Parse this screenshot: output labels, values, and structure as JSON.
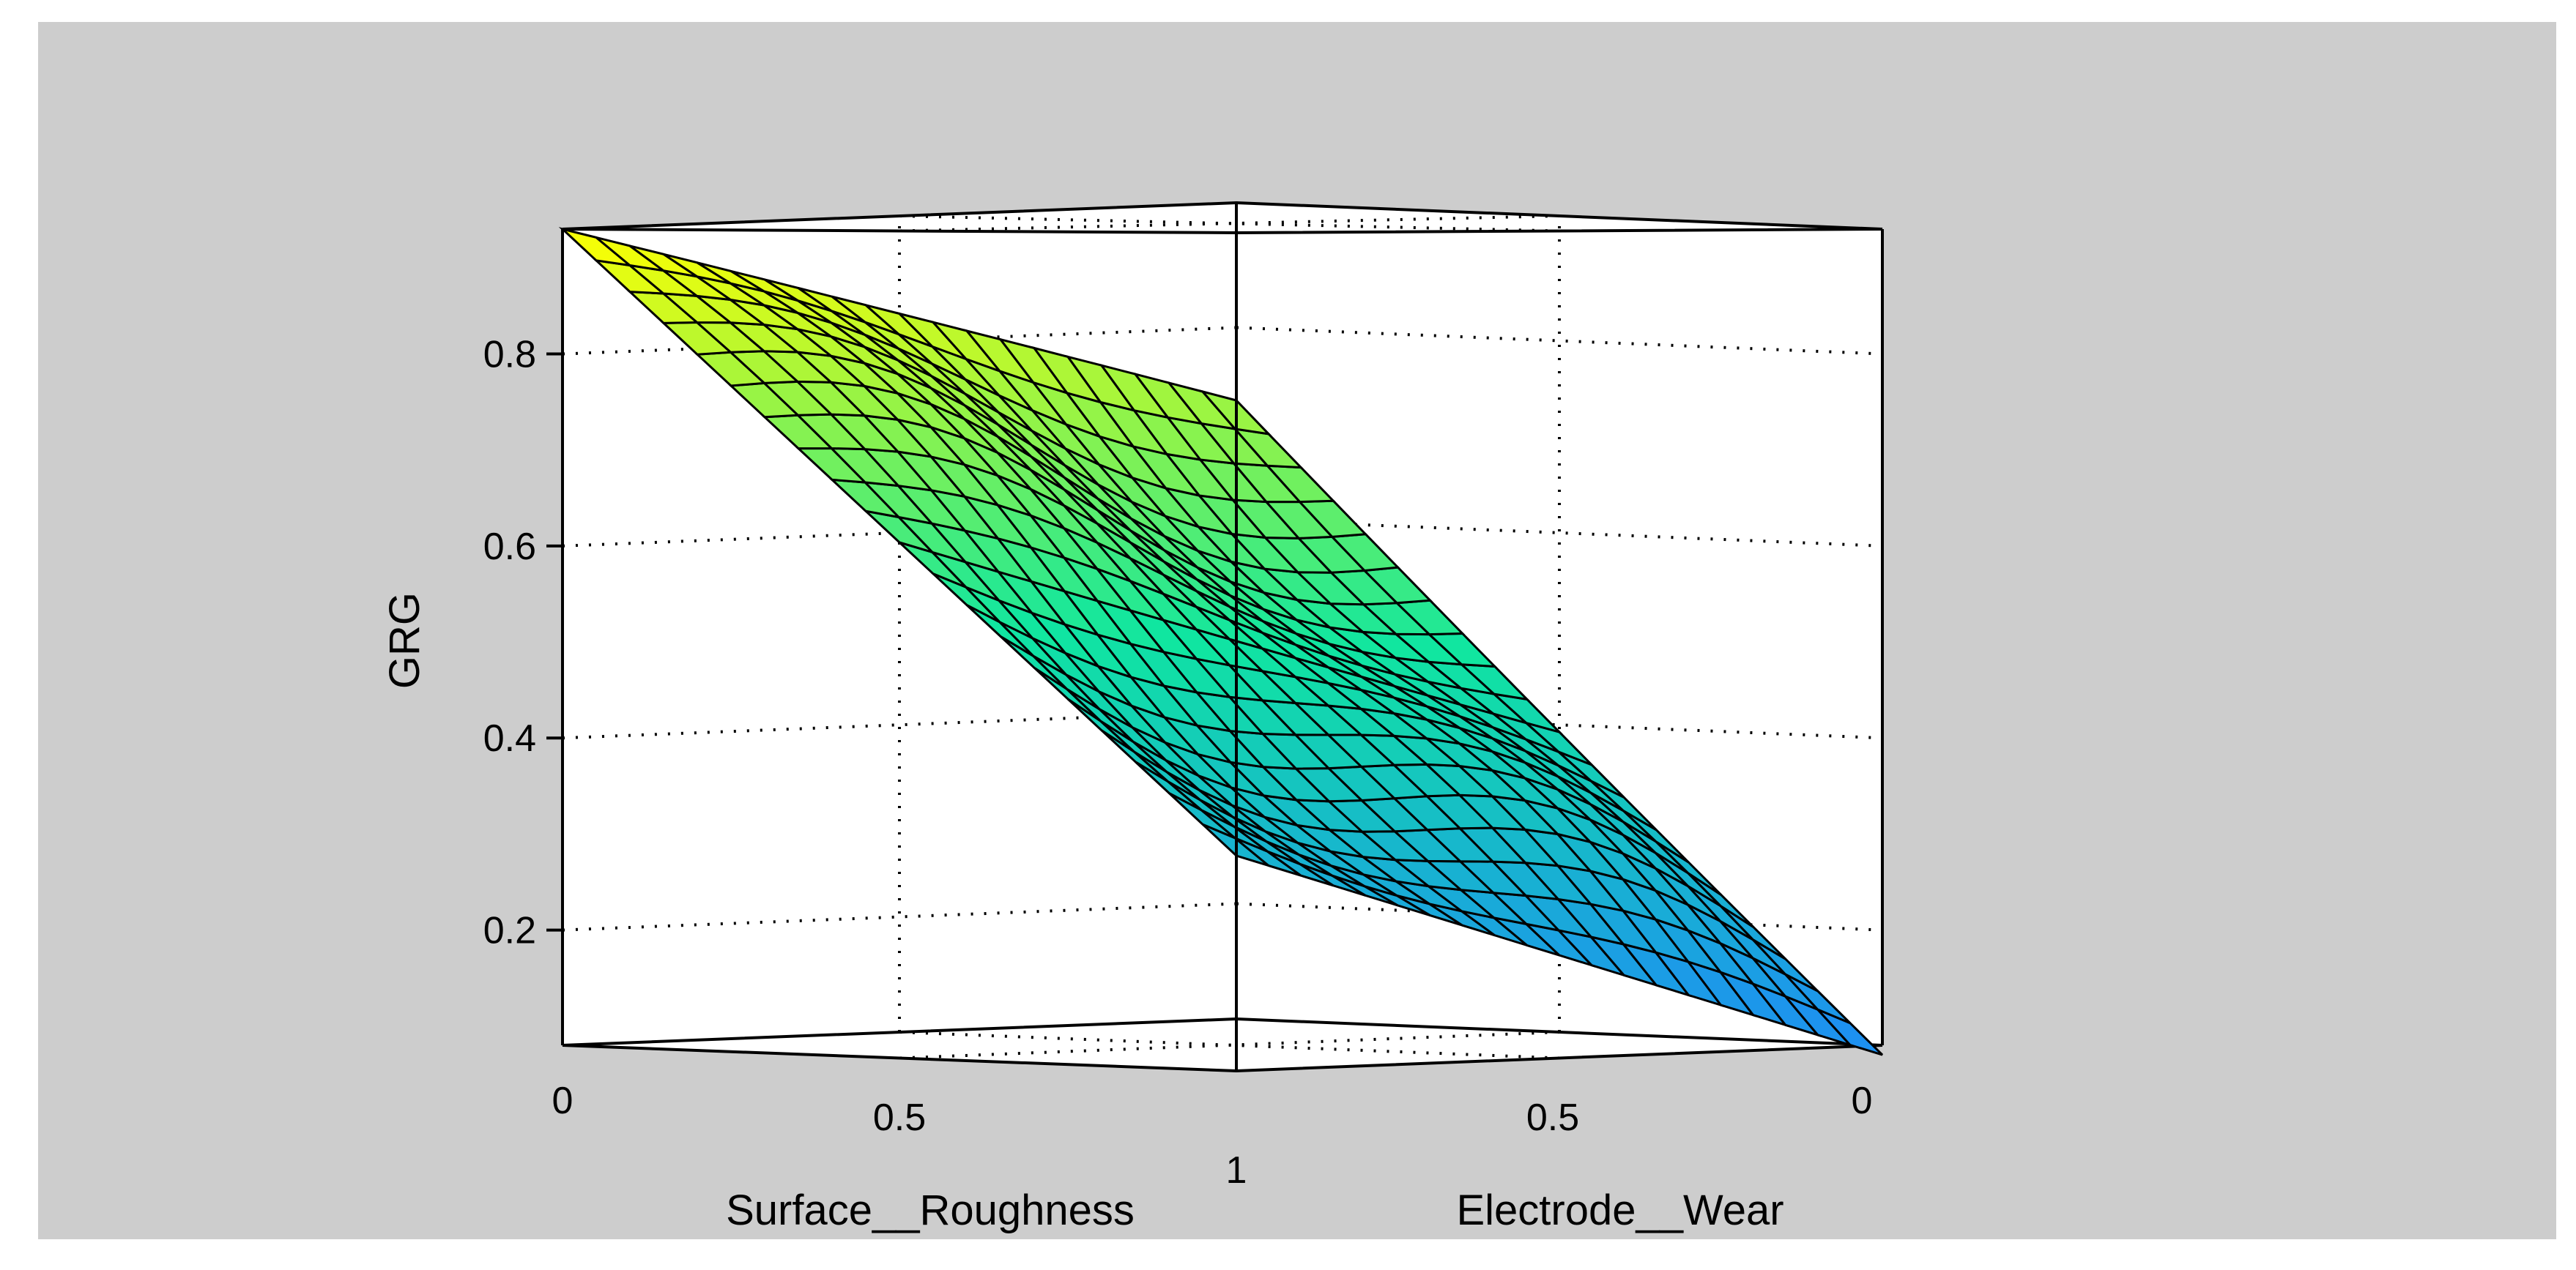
{
  "chart_data": {
    "type": "surface3d",
    "title": "",
    "xlabel": "Surface__Roughness",
    "ylabel": "Electrode__Wear",
    "zlabel": "GRG",
    "xlim": [
      0,
      1
    ],
    "ylim": [
      0,
      1
    ],
    "zlim": [
      0.08,
      0.93
    ],
    "x_tick_labels": [
      "0",
      "0.5",
      "1"
    ],
    "y_tick_labels": [
      "1",
      "0.5",
      "0"
    ],
    "z_ticks": [
      0.2,
      0.4,
      0.6,
      0.8
    ],
    "z_tick_labels": [
      "0.2",
      "0.4",
      "0.6",
      "0.8"
    ],
    "grid": true,
    "colormap": "parula-like (blue to yellow)",
    "surface_corners": {
      "x0_y0": 0.93,
      "x1_y0": 0.76,
      "x0_y1": 0.25,
      "x1_y1": 0.07,
      "center": 0.5
    },
    "grid_resolution": 21
  },
  "colors": {
    "figure_background": "#cdcdcd",
    "axes_background": "#ffffff",
    "mesh_edges": "#000000",
    "low": "#1e8cf5",
    "mid": "#10e6a0",
    "high": "#ffff00"
  }
}
